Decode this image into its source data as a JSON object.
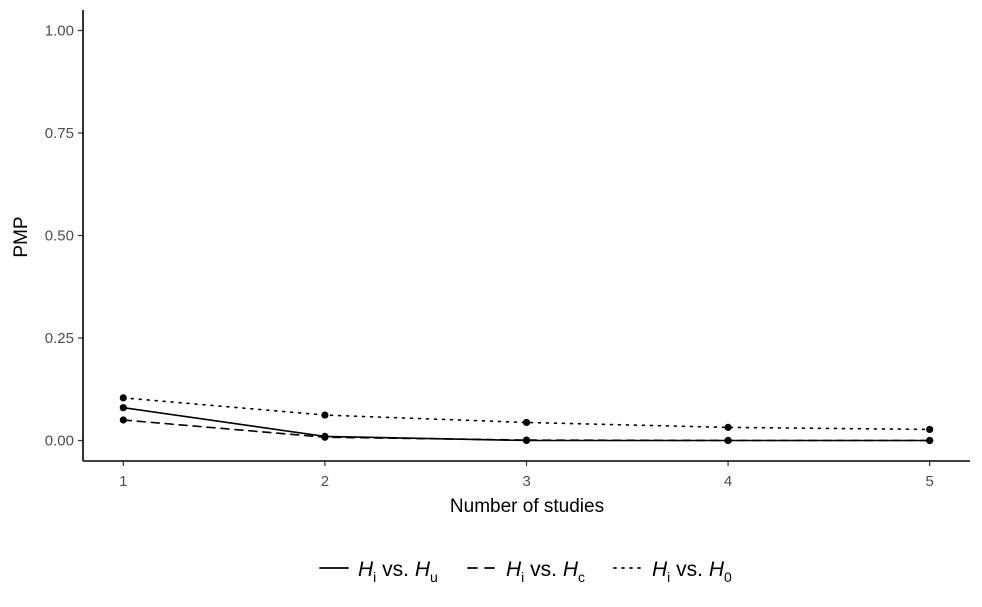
{
  "chart_data": {
    "type": "line",
    "title": "",
    "xlabel": "Number of studies",
    "ylabel": "PMP",
    "x": [
      1,
      2,
      3,
      4,
      5
    ],
    "xlim": [
      0.8,
      5.2
    ],
    "ylim": [
      -0.05,
      1.05
    ],
    "x_ticks": [
      "1",
      "2",
      "3",
      "4",
      "5"
    ],
    "y_ticks": [
      "0.00",
      "0.25",
      "0.50",
      "0.75",
      "1.00"
    ],
    "y_tick_values": [
      0,
      0.25,
      0.5,
      0.75,
      1
    ],
    "grid": false,
    "legend_position": "bottom",
    "series": [
      {
        "name": "H_i vs. H_u",
        "letter": "H",
        "sub1": "i",
        "mid": " vs. ",
        "letter2": "H",
        "sub2": "u",
        "linestyle": "solid",
        "color": "#000000",
        "values": [
          0.08,
          0.01,
          0.0,
          0.0,
          0.0
        ]
      },
      {
        "name": "H_i vs. H_c",
        "letter": "H",
        "sub1": "i",
        "mid": " vs. ",
        "letter2": "H",
        "sub2": "c",
        "linestyle": "dashed",
        "color": "#000000",
        "values": [
          0.05,
          0.008,
          0.001,
          0.0,
          0.0
        ]
      },
      {
        "name": "H_i vs. H_0",
        "letter": "H",
        "sub1": "i",
        "mid": " vs. ",
        "letter2": "H",
        "sub2": "0",
        "linestyle": "dotted",
        "color": "#000000",
        "values": [
          0.104,
          0.062,
          0.044,
          0.032,
          0.027
        ]
      }
    ]
  }
}
